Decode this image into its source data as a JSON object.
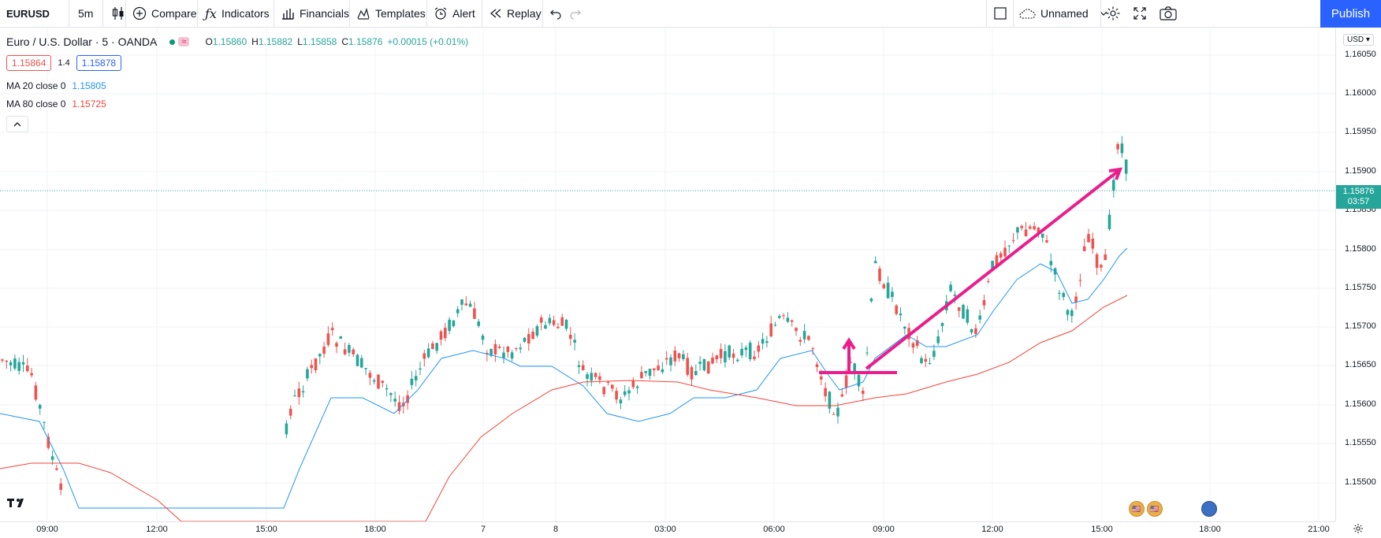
{
  "toolbar": {
    "symbol": "EURUSD",
    "interval": "5m",
    "compare_label": "Compare",
    "indicators_label": "Indicators",
    "financials_label": "Financials",
    "templates_label": "Templates",
    "alert_label": "Alert",
    "replay_label": "Replay",
    "layout_name": "Unnamed",
    "publish_label": "Publish"
  },
  "legend": {
    "title": "Euro / U.S. Dollar · 5 · OANDA",
    "o_label": "O",
    "o_value": "1.15860",
    "h_label": "H",
    "h_value": "1.15882",
    "l_label": "L",
    "l_value": "1.15858",
    "c_label": "C",
    "c_value": "1.15876",
    "change": "+0.00015 (+0.01%)",
    "sell_price": "1.15864",
    "spread": "1.4",
    "buy_price": "1.15878",
    "ma20_label": "MA 20 close 0",
    "ma20_value": "1.15805",
    "ma80_label": "MA 80 close 0",
    "ma80_value": "1.15725"
  },
  "price_axis": {
    "currency": "USD",
    "labels": [
      "1.16050",
      "1.16000",
      "1.15950",
      "1.15900",
      "1.15850",
      "1.15800",
      "1.15750",
      "1.15700",
      "1.15650",
      "1.15600",
      "1.15550",
      "1.15500"
    ],
    "current_price": "1.15876",
    "countdown": "03:57"
  },
  "time_axis": {
    "labels": [
      "09:00",
      "12:00",
      "15:00",
      "18:00",
      "7",
      "8",
      "03:00",
      "06:00",
      "09:00",
      "12:00",
      "15:00",
      "18:00",
      "21:00"
    ]
  },
  "colors": {
    "up": "#26a69a",
    "down": "#ef5350",
    "ma20": "#2196f3",
    "ma80": "#f44336",
    "drawing": "#e91e8c",
    "accent": "#2962ff"
  }
}
